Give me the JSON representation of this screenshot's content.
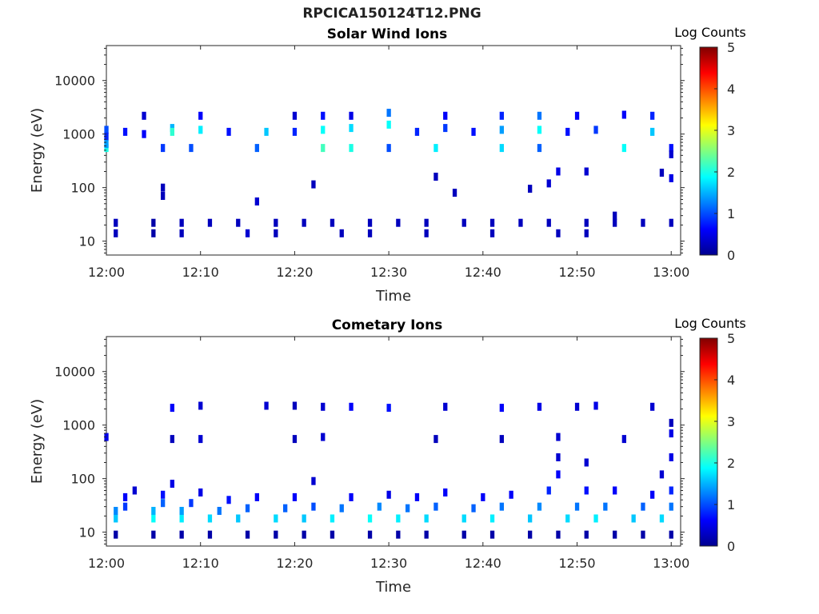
{
  "page": {
    "title": "RPCICA150124T12.PNG"
  },
  "chart_data": [
    {
      "type": "heatmap",
      "title": "Solar Wind Ions",
      "xlabel": "Time",
      "ylabel": "Energy (eV)",
      "y_scale": "log",
      "ylim": [
        5.5,
        45000
      ],
      "xlim": [
        "12:00",
        "13:01"
      ],
      "x_ticks": [
        "12:00",
        "12:10",
        "12:20",
        "12:30",
        "12:40",
        "12:50",
        "13:00"
      ],
      "y_ticks": [
        10,
        100,
        1000,
        10000
      ],
      "y_tick_labels": [
        "10",
        "100",
        "1000",
        "10000"
      ],
      "colorbar": {
        "label": "Log Counts",
        "min": 0,
        "max": 5,
        "ticks": [
          "0",
          "1",
          "2",
          "3",
          "4",
          "5"
        ],
        "colormap": "jet"
      },
      "pixels": [
        {
          "t": "12:00",
          "e": 1200,
          "v": 1.0
        },
        {
          "t": "12:00",
          "e": 900,
          "v": 0.8
        },
        {
          "t": "12:00",
          "e": 550,
          "v": 2.0
        },
        {
          "t": "12:00",
          "e": 650,
          "v": 1.4
        },
        {
          "t": "12:02",
          "e": 1100,
          "v": 0.7
        },
        {
          "t": "12:04",
          "e": 1000,
          "v": 0.6
        },
        {
          "t": "12:04",
          "e": 2200,
          "v": 0.4
        },
        {
          "t": "12:06",
          "e": 550,
          "v": 0.9
        },
        {
          "t": "12:07",
          "e": 1300,
          "v": 1.5
        },
        {
          "t": "12:07",
          "e": 1100,
          "v": 2.1
        },
        {
          "t": "12:09",
          "e": 550,
          "v": 1.0
        },
        {
          "t": "12:10",
          "e": 1200,
          "v": 1.8
        },
        {
          "t": "12:10",
          "e": 2200,
          "v": 0.6
        },
        {
          "t": "12:13",
          "e": 1100,
          "v": 0.7
        },
        {
          "t": "12:16",
          "e": 550,
          "v": 1.1
        },
        {
          "t": "12:17",
          "e": 1100,
          "v": 1.6
        },
        {
          "t": "12:20",
          "e": 1100,
          "v": 0.8
        },
        {
          "t": "12:20",
          "e": 2200,
          "v": 0.4
        },
        {
          "t": "12:23",
          "e": 1200,
          "v": 1.9
        },
        {
          "t": "12:23",
          "e": 550,
          "v": 2.2
        },
        {
          "t": "12:23",
          "e": 2200,
          "v": 0.7
        },
        {
          "t": "12:26",
          "e": 1300,
          "v": 1.7
        },
        {
          "t": "12:26",
          "e": 550,
          "v": 2.0
        },
        {
          "t": "12:26",
          "e": 2200,
          "v": 0.5
        },
        {
          "t": "12:30",
          "e": 1500,
          "v": 1.9
        },
        {
          "t": "12:30",
          "e": 2500,
          "v": 1.2
        },
        {
          "t": "12:30",
          "e": 550,
          "v": 1.0
        },
        {
          "t": "12:33",
          "e": 1100,
          "v": 0.8
        },
        {
          "t": "12:35",
          "e": 550,
          "v": 1.8
        },
        {
          "t": "12:36",
          "e": 1300,
          "v": 0.9
        },
        {
          "t": "12:36",
          "e": 2200,
          "v": 0.6
        },
        {
          "t": "12:39",
          "e": 1100,
          "v": 0.7
        },
        {
          "t": "12:42",
          "e": 2200,
          "v": 0.8
        },
        {
          "t": "12:42",
          "e": 1200,
          "v": 1.4
        },
        {
          "t": "12:42",
          "e": 550,
          "v": 1.7
        },
        {
          "t": "12:46",
          "e": 2200,
          "v": 1.2
        },
        {
          "t": "12:46",
          "e": 1200,
          "v": 1.9
        },
        {
          "t": "12:46",
          "e": 550,
          "v": 1.1
        },
        {
          "t": "12:48",
          "e": 200,
          "v": 0.5
        },
        {
          "t": "12:49",
          "e": 1100,
          "v": 0.7
        },
        {
          "t": "12:50",
          "e": 2200,
          "v": 0.6
        },
        {
          "t": "12:51",
          "e": 200,
          "v": 0.4
        },
        {
          "t": "12:52",
          "e": 1200,
          "v": 0.9
        },
        {
          "t": "12:55",
          "e": 550,
          "v": 1.9
        },
        {
          "t": "12:55",
          "e": 2300,
          "v": 0.6
        },
        {
          "t": "12:58",
          "e": 1100,
          "v": 1.6
        },
        {
          "t": "12:58",
          "e": 2200,
          "v": 0.8
        },
        {
          "t": "13:00",
          "e": 550,
          "v": 0.7
        },
        {
          "t": "13:00",
          "e": 150,
          "v": 0.5
        },
        {
          "t": "12:01",
          "e": 22,
          "v": 0.3
        },
        {
          "t": "12:01",
          "e": 14,
          "v": 0.3
        },
        {
          "t": "12:05",
          "e": 22,
          "v": 0.2
        },
        {
          "t": "12:05",
          "e": 14,
          "v": 0.2
        },
        {
          "t": "12:08",
          "e": 22,
          "v": 0.3
        },
        {
          "t": "12:08",
          "e": 14,
          "v": 0.3
        },
        {
          "t": "12:11",
          "e": 22,
          "v": 0.3
        },
        {
          "t": "12:14",
          "e": 22,
          "v": 0.3
        },
        {
          "t": "12:15",
          "e": 14,
          "v": 0.4
        },
        {
          "t": "12:18",
          "e": 22,
          "v": 0.3
        },
        {
          "t": "12:18",
          "e": 14,
          "v": 0.3
        },
        {
          "t": "12:21",
          "e": 22,
          "v": 0.3
        },
        {
          "t": "12:24",
          "e": 22,
          "v": 0.3
        },
        {
          "t": "12:25",
          "e": 14,
          "v": 0.3
        },
        {
          "t": "12:28",
          "e": 22,
          "v": 0.3
        },
        {
          "t": "12:28",
          "e": 14,
          "v": 0.3
        },
        {
          "t": "12:31",
          "e": 22,
          "v": 0.3
        },
        {
          "t": "12:34",
          "e": 22,
          "v": 0.3
        },
        {
          "t": "12:34",
          "e": 14,
          "v": 0.3
        },
        {
          "t": "12:38",
          "e": 22,
          "v": 0.3
        },
        {
          "t": "12:41",
          "e": 22,
          "v": 0.3
        },
        {
          "t": "12:41",
          "e": 14,
          "v": 0.3
        },
        {
          "t": "12:44",
          "e": 22,
          "v": 0.3
        },
        {
          "t": "12:47",
          "e": 22,
          "v": 0.3
        },
        {
          "t": "12:48",
          "e": 14,
          "v": 0.3
        },
        {
          "t": "12:51",
          "e": 22,
          "v": 0.3
        },
        {
          "t": "12:51",
          "e": 14,
          "v": 0.3
        },
        {
          "t": "12:54",
          "e": 22,
          "v": 0.3
        },
        {
          "t": "12:57",
          "e": 22,
          "v": 0.3
        },
        {
          "t": "13:00",
          "e": 22,
          "v": 0.3
        },
        {
          "t": "12:06",
          "e": 70,
          "v": 0.3
        },
        {
          "t": "12:06",
          "e": 100,
          "v": 0.3
        },
        {
          "t": "12:16",
          "e": 55,
          "v": 0.4
        },
        {
          "t": "12:22",
          "e": 115,
          "v": 0.3
        },
        {
          "t": "12:35",
          "e": 160,
          "v": 0.3
        },
        {
          "t": "12:37",
          "e": 80,
          "v": 0.3
        },
        {
          "t": "12:45",
          "e": 95,
          "v": 0.3
        },
        {
          "t": "12:47",
          "e": 120,
          "v": 0.4
        },
        {
          "t": "12:54",
          "e": 30,
          "v": 0.3
        },
        {
          "t": "12:59",
          "e": 190,
          "v": 0.3
        },
        {
          "t": "13:00",
          "e": 420,
          "v": 0.4
        }
      ]
    },
    {
      "type": "heatmap",
      "title": "Cometary Ions",
      "xlabel": "Time",
      "ylabel": "Energy (eV)",
      "y_scale": "log",
      "ylim": [
        5.5,
        45000
      ],
      "xlim": [
        "12:00",
        "13:01"
      ],
      "x_ticks": [
        "12:00",
        "12:10",
        "12:20",
        "12:30",
        "12:40",
        "12:50",
        "13:00"
      ],
      "y_ticks": [
        10,
        100,
        1000,
        10000
      ],
      "y_tick_labels": [
        "10",
        "100",
        "1000",
        "10000"
      ],
      "colorbar": {
        "label": "Log Counts",
        "min": 0,
        "max": 5,
        "ticks": [
          "0",
          "1",
          "2",
          "3",
          "4",
          "5"
        ],
        "colormap": "jet"
      },
      "pixels": [
        {
          "t": "12:01",
          "e": 18,
          "v": 1.6
        },
        {
          "t": "12:01",
          "e": 25,
          "v": 1.3
        },
        {
          "t": "12:02",
          "e": 30,
          "v": 0.9
        },
        {
          "t": "12:02",
          "e": 45,
          "v": 0.6
        },
        {
          "t": "12:03",
          "e": 60,
          "v": 0.4
        },
        {
          "t": "12:05",
          "e": 18,
          "v": 1.9
        },
        {
          "t": "12:05",
          "e": 25,
          "v": 1.5
        },
        {
          "t": "12:06",
          "e": 35,
          "v": 1.1
        },
        {
          "t": "12:06",
          "e": 50,
          "v": 0.7
        },
        {
          "t": "12:07",
          "e": 80,
          "v": 0.5
        },
        {
          "t": "12:08",
          "e": 18,
          "v": 1.8
        },
        {
          "t": "12:08",
          "e": 25,
          "v": 1.4
        },
        {
          "t": "12:09",
          "e": 35,
          "v": 0.9
        },
        {
          "t": "12:10",
          "e": 55,
          "v": 0.5
        },
        {
          "t": "12:11",
          "e": 18,
          "v": 1.7
        },
        {
          "t": "12:12",
          "e": 25,
          "v": 1.2
        },
        {
          "t": "12:13",
          "e": 40,
          "v": 0.7
        },
        {
          "t": "12:14",
          "e": 18,
          "v": 1.6
        },
        {
          "t": "12:15",
          "e": 28,
          "v": 1.1
        },
        {
          "t": "12:16",
          "e": 45,
          "v": 0.6
        },
        {
          "t": "12:18",
          "e": 18,
          "v": 1.7
        },
        {
          "t": "12:19",
          "e": 28,
          "v": 1.1
        },
        {
          "t": "12:20",
          "e": 45,
          "v": 0.6
        },
        {
          "t": "12:21",
          "e": 18,
          "v": 1.6
        },
        {
          "t": "12:22",
          "e": 30,
          "v": 1.0
        },
        {
          "t": "12:22",
          "e": 90,
          "v": 0.4
        },
        {
          "t": "12:24",
          "e": 18,
          "v": 1.8
        },
        {
          "t": "12:25",
          "e": 28,
          "v": 1.2
        },
        {
          "t": "12:26",
          "e": 45,
          "v": 0.6
        },
        {
          "t": "12:28",
          "e": 18,
          "v": 1.9
        },
        {
          "t": "12:29",
          "e": 30,
          "v": 1.3
        },
        {
          "t": "12:30",
          "e": 50,
          "v": 0.5
        },
        {
          "t": "12:31",
          "e": 18,
          "v": 1.8
        },
        {
          "t": "12:32",
          "e": 28,
          "v": 1.2
        },
        {
          "t": "12:33",
          "e": 45,
          "v": 0.6
        },
        {
          "t": "12:34",
          "e": 18,
          "v": 1.7
        },
        {
          "t": "12:35",
          "e": 30,
          "v": 1.1
        },
        {
          "t": "12:36",
          "e": 55,
          "v": 0.6
        },
        {
          "t": "12:38",
          "e": 18,
          "v": 1.7
        },
        {
          "t": "12:39",
          "e": 28,
          "v": 1.1
        },
        {
          "t": "12:40",
          "e": 45,
          "v": 0.6
        },
        {
          "t": "12:41",
          "e": 18,
          "v": 1.8
        },
        {
          "t": "12:42",
          "e": 30,
          "v": 1.2
        },
        {
          "t": "12:43",
          "e": 50,
          "v": 0.6
        },
        {
          "t": "12:45",
          "e": 18,
          "v": 1.6
        },
        {
          "t": "12:46",
          "e": 30,
          "v": 1.3
        },
        {
          "t": "12:47",
          "e": 60,
          "v": 0.8
        },
        {
          "t": "12:48",
          "e": 120,
          "v": 0.6
        },
        {
          "t": "12:48",
          "e": 250,
          "v": 0.4
        },
        {
          "t": "12:49",
          "e": 18,
          "v": 1.7
        },
        {
          "t": "12:50",
          "e": 30,
          "v": 1.2
        },
        {
          "t": "12:51",
          "e": 60,
          "v": 0.7
        },
        {
          "t": "12:51",
          "e": 200,
          "v": 0.4
        },
        {
          "t": "12:52",
          "e": 18,
          "v": 1.8
        },
        {
          "t": "12:53",
          "e": 30,
          "v": 1.2
        },
        {
          "t": "12:54",
          "e": 60,
          "v": 0.6
        },
        {
          "t": "12:56",
          "e": 18,
          "v": 1.6
        },
        {
          "t": "12:57",
          "e": 30,
          "v": 1.1
        },
        {
          "t": "12:58",
          "e": 50,
          "v": 0.6
        },
        {
          "t": "12:59",
          "e": 120,
          "v": 0.4
        },
        {
          "t": "12:59",
          "e": 18,
          "v": 1.7
        },
        {
          "t": "13:00",
          "e": 30,
          "v": 1.2
        },
        {
          "t": "13:00",
          "e": 60,
          "v": 0.8
        },
        {
          "t": "13:00",
          "e": 250,
          "v": 0.5
        },
        {
          "t": "12:07",
          "e": 2100,
          "v": 0.6
        },
        {
          "t": "12:10",
          "e": 2300,
          "v": 0.4
        },
        {
          "t": "12:17",
          "e": 2300,
          "v": 0.4
        },
        {
          "t": "12:20",
          "e": 2300,
          "v": 0.3
        },
        {
          "t": "12:23",
          "e": 2200,
          "v": 0.4
        },
        {
          "t": "12:26",
          "e": 2200,
          "v": 0.6
        },
        {
          "t": "12:30",
          "e": 2100,
          "v": 0.7
        },
        {
          "t": "12:36",
          "e": 2200,
          "v": 0.4
        },
        {
          "t": "12:42",
          "e": 2100,
          "v": 0.6
        },
        {
          "t": "12:46",
          "e": 2200,
          "v": 0.5
        },
        {
          "t": "12:50",
          "e": 2200,
          "v": 0.4
        },
        {
          "t": "12:52",
          "e": 2300,
          "v": 0.5
        },
        {
          "t": "12:58",
          "e": 2200,
          "v": 0.4
        },
        {
          "t": "12:00",
          "e": 600,
          "v": 0.5
        },
        {
          "t": "12:07",
          "e": 550,
          "v": 0.3
        },
        {
          "t": "12:10",
          "e": 550,
          "v": 0.4
        },
        {
          "t": "12:20",
          "e": 550,
          "v": 0.3
        },
        {
          "t": "12:23",
          "e": 600,
          "v": 0.4
        },
        {
          "t": "12:35",
          "e": 550,
          "v": 0.3
        },
        {
          "t": "12:42",
          "e": 550,
          "v": 0.3
        },
        {
          "t": "12:48",
          "e": 600,
          "v": 0.4
        },
        {
          "t": "12:55",
          "e": 550,
          "v": 0.4
        },
        {
          "t": "13:00",
          "e": 700,
          "v": 0.5
        },
        {
          "t": "13:00",
          "e": 1100,
          "v": 0.3
        },
        {
          "t": "12:01",
          "e": 9,
          "v": 0.2
        },
        {
          "t": "12:05",
          "e": 9,
          "v": 0.2
        },
        {
          "t": "12:08",
          "e": 9,
          "v": 0.2
        },
        {
          "t": "12:11",
          "e": 9,
          "v": 0.2
        },
        {
          "t": "12:15",
          "e": 9,
          "v": 0.2
        },
        {
          "t": "12:18",
          "e": 9,
          "v": 0.2
        },
        {
          "t": "12:21",
          "e": 9,
          "v": 0.2
        },
        {
          "t": "12:24",
          "e": 9,
          "v": 0.2
        },
        {
          "t": "12:28",
          "e": 9,
          "v": 0.2
        },
        {
          "t": "12:31",
          "e": 9,
          "v": 0.2
        },
        {
          "t": "12:34",
          "e": 9,
          "v": 0.2
        },
        {
          "t": "12:38",
          "e": 9,
          "v": 0.2
        },
        {
          "t": "12:41",
          "e": 9,
          "v": 0.2
        },
        {
          "t": "12:45",
          "e": 9,
          "v": 0.2
        },
        {
          "t": "12:48",
          "e": 9,
          "v": 0.2
        },
        {
          "t": "12:51",
          "e": 9,
          "v": 0.2
        },
        {
          "t": "12:54",
          "e": 9,
          "v": 0.2
        },
        {
          "t": "12:57",
          "e": 9,
          "v": 0.2
        },
        {
          "t": "13:00",
          "e": 9,
          "v": 0.2
        }
      ]
    }
  ]
}
